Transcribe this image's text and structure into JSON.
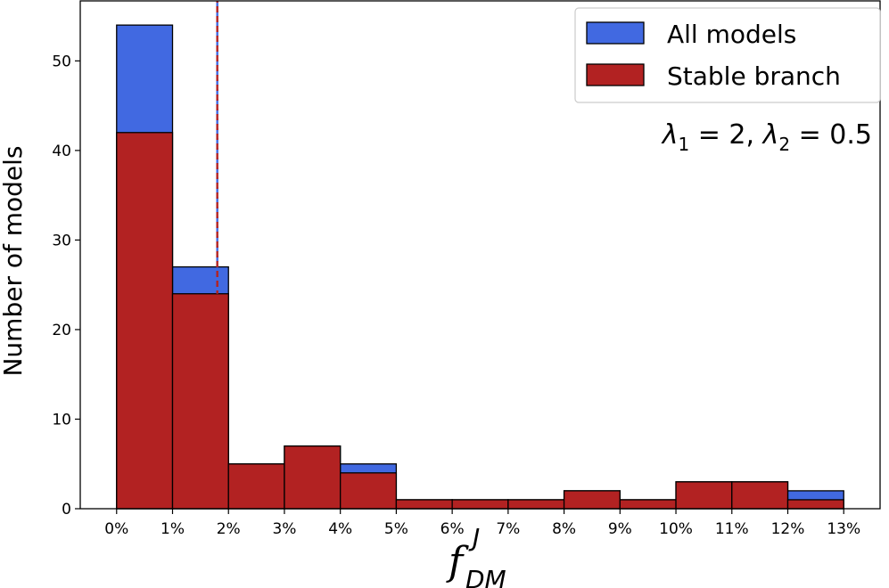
{
  "chart_data": {
    "type": "bar",
    "bin_edges": [
      0,
      1,
      2,
      3,
      4,
      5,
      6,
      7,
      8,
      9,
      10,
      11,
      12,
      13
    ],
    "x_tick_labels": [
      "0%",
      "1%",
      "2%",
      "3%",
      "4%",
      "5%",
      "6%",
      "7%",
      "8%",
      "9%",
      "10%",
      "11%",
      "12%",
      "13%"
    ],
    "y_ticks": [
      0,
      10,
      20,
      30,
      40,
      50
    ],
    "series": [
      {
        "name": "All models",
        "color": "#4169e1",
        "values": [
          54,
          27,
          5,
          7,
          5,
          1,
          1,
          1,
          2,
          1,
          3,
          3,
          2
        ]
      },
      {
        "name": "Stable branch",
        "color": "#b22222",
        "values": [
          42,
          24,
          5,
          7,
          4,
          1,
          1,
          1,
          2,
          1,
          3,
          3,
          1
        ]
      }
    ],
    "vlines": [
      {
        "x": 1.8,
        "color": "#4169e1"
      },
      {
        "x": 1.8,
        "color": "#b22222"
      }
    ],
    "xlim": [
      -0.65,
      13.65
    ],
    "ylim": [
      0,
      56.7
    ],
    "xlabel_main": "f",
    "xlabel_sub": "DM",
    "xlabel_sup": "J",
    "ylabel": "Number of models",
    "annotation_parts": [
      "λ",
      "1",
      " = 2, ",
      "λ",
      "2",
      " = 0.5"
    ],
    "legend_position": "top-right",
    "grid": false
  }
}
